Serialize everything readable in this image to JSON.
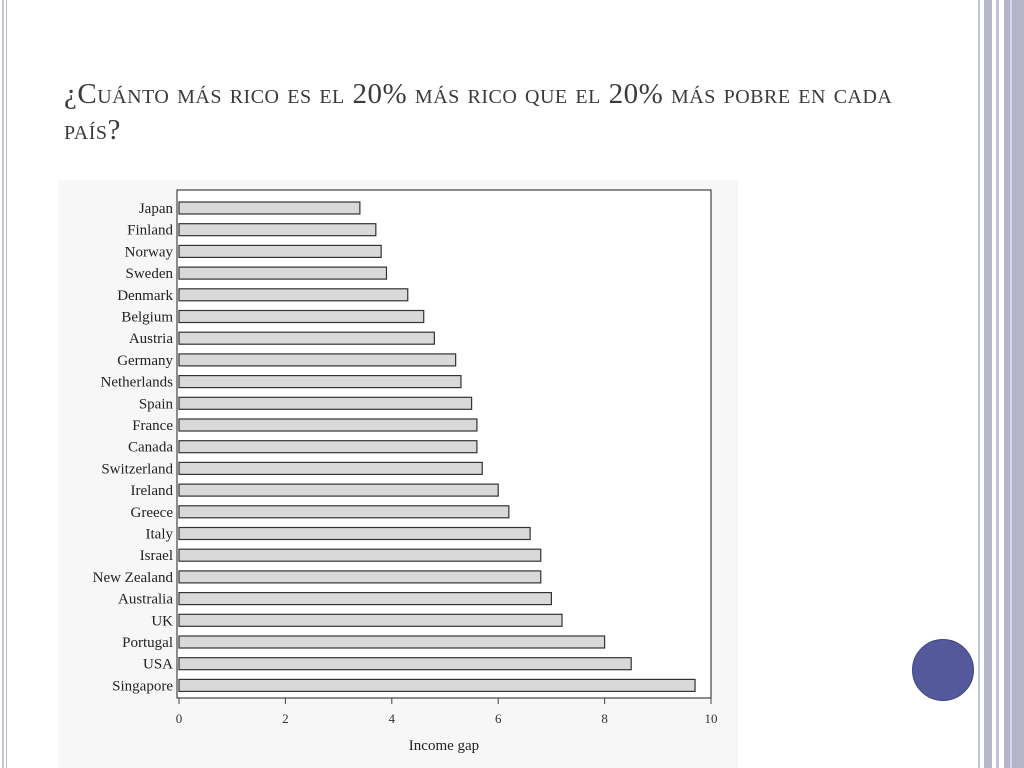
{
  "slide": {
    "title": "¿Cuánto más rico es el 20% más rico que el 20% más pobre en cada país?"
  },
  "colors": {
    "bar_fill": "#d9d9d9",
    "bar_stroke": "#333333",
    "accent_dot": "#53599a",
    "frame": "#b7b7cc"
  },
  "chart_data": {
    "type": "bar",
    "orientation": "horizontal",
    "categories": [
      "Japan",
      "Finland",
      "Norway",
      "Sweden",
      "Denmark",
      "Belgium",
      "Austria",
      "Germany",
      "Netherlands",
      "Spain",
      "France",
      "Canada",
      "Switzerland",
      "Ireland",
      "Greece",
      "Italy",
      "Israel",
      "New Zealand",
      "Australia",
      "UK",
      "Portugal",
      "USA",
      "Singapore"
    ],
    "values": [
      3.4,
      3.7,
      3.8,
      3.9,
      4.3,
      4.6,
      4.8,
      5.2,
      5.3,
      5.5,
      5.6,
      5.6,
      5.7,
      6.0,
      6.2,
      6.6,
      6.8,
      6.8,
      7.0,
      7.2,
      8.0,
      8.5,
      9.7
    ],
    "xlabel": "Income gap",
    "xlim": [
      0,
      10
    ],
    "xticks": [
      "0",
      "2",
      "4",
      "6",
      "8",
      "10"
    ],
    "grid": false,
    "legend": "none"
  }
}
